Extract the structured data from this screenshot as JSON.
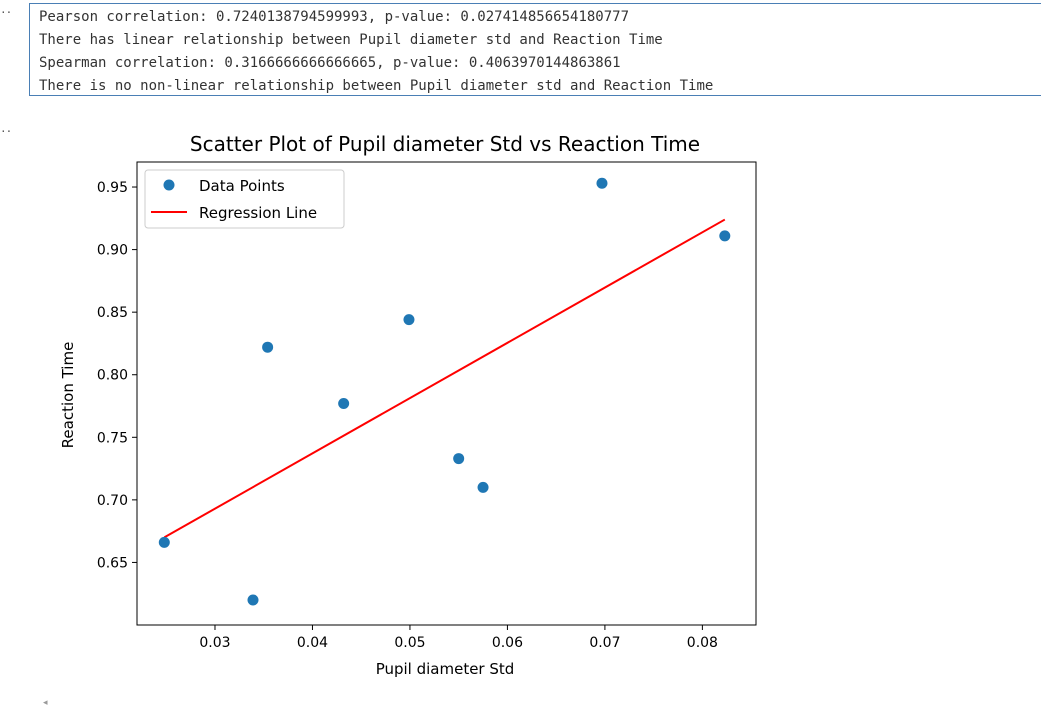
{
  "cell": {
    "gutter_top": "··",
    "gutter_plot": "··"
  },
  "text_output": {
    "lines": [
      "Pearson correlation: 0.7240138794599993, p-value: 0.027414856654180777",
      "There has linear relationship between Pupil diameter std and Reaction Time",
      "Spearman correlation: 0.3166666666666665, p-value: 0.4063970144863861",
      "There is no non-linear relationship between Pupil diameter std and Reaction Time"
    ]
  },
  "chart_data": {
    "type": "scatter",
    "title": "Scatter Plot of Pupil diameter Std vs Reaction Time",
    "xlabel": "Pupil diameter Std",
    "ylabel": "Reaction Time",
    "xlim": [
      0.022,
      0.0855
    ],
    "ylim": [
      0.6,
      0.97
    ],
    "xticks": [
      0.03,
      0.04,
      0.05,
      0.06,
      0.07,
      0.08
    ],
    "xtick_labels": [
      "0.03",
      "0.04",
      "0.05",
      "0.06",
      "0.07",
      "0.08"
    ],
    "yticks": [
      0.65,
      0.7,
      0.75,
      0.8,
      0.85,
      0.9,
      0.95
    ],
    "ytick_labels": [
      "0.65",
      "0.70",
      "0.75",
      "0.80",
      "0.85",
      "0.90",
      "0.95"
    ],
    "grid": false,
    "legend_position": "upper-left",
    "series": [
      {
        "name": "Data Points",
        "kind": "scatter",
        "color": "#1f77b4",
        "points": [
          [
            0.0248,
            0.666
          ],
          [
            0.0339,
            0.62
          ],
          [
            0.0354,
            0.822
          ],
          [
            0.0432,
            0.777
          ],
          [
            0.0499,
            0.844
          ],
          [
            0.055,
            0.733
          ],
          [
            0.0575,
            0.71
          ],
          [
            0.0697,
            0.953
          ],
          [
            0.0823,
            0.911
          ]
        ]
      },
      {
        "name": "Regression Line",
        "kind": "line",
        "color": "#ff0000",
        "points": [
          [
            0.0248,
            0.67
          ],
          [
            0.0823,
            0.924
          ]
        ]
      }
    ]
  },
  "ui": {
    "scroll_left_glyph": "◂"
  }
}
